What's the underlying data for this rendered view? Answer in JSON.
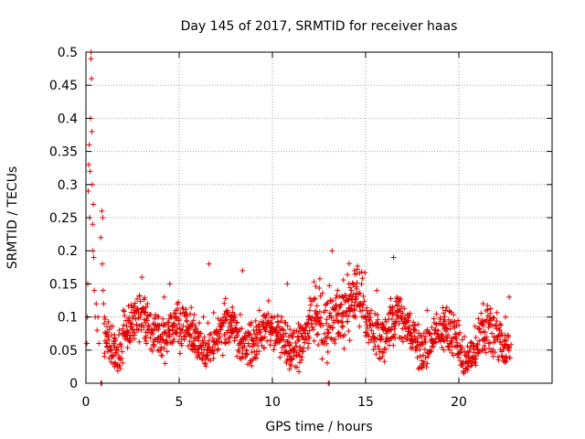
{
  "chart_data": {
    "type": "scatter",
    "title": "Day 145 of 2017, SRMTID for receiver haas",
    "xlabel": "GPS time / hours",
    "ylabel": "SRMTID / TECUs",
    "xlim": [
      0,
      25
    ],
    "ylim": [
      0,
      0.5
    ],
    "xticks": [
      0,
      5,
      10,
      15,
      20
    ],
    "yticks": [
      0,
      0.05,
      0.1,
      0.15,
      0.2,
      0.25,
      0.3,
      0.35,
      0.4,
      0.45,
      0.5
    ],
    "xtick_labels": [
      "0",
      "5",
      "10",
      "15",
      "20"
    ],
    "ytick_labels": [
      "0",
      "0.05",
      "0.1",
      "0.15",
      "0.2",
      "0.25",
      "0.3",
      "0.35",
      "0.4",
      "0.45",
      "0.5"
    ],
    "grid": true,
    "marker": "+",
    "color": "#e00000",
    "series": [
      {
        "name": "SRMTID",
        "points": [
          [
            0.05,
            0.06
          ],
          [
            0.08,
            0.1
          ],
          [
            0.1,
            0.15
          ],
          [
            0.12,
            0.29
          ],
          [
            0.15,
            0.33
          ],
          [
            0.18,
            0.36
          ],
          [
            0.2,
            0.25
          ],
          [
            0.22,
            0.32
          ],
          [
            0.25,
            0.4
          ],
          [
            0.27,
            0.49
          ],
          [
            0.28,
            0.5
          ],
          [
            0.3,
            0.46
          ],
          [
            0.32,
            0.38
          ],
          [
            0.34,
            0.3
          ],
          [
            0.36,
            0.24
          ],
          [
            0.38,
            0.2
          ],
          [
            0.4,
            0.27
          ],
          [
            0.42,
            0.19
          ],
          [
            0.45,
            0.14
          ],
          [
            0.5,
            0.1
          ],
          [
            0.55,
            0.12
          ],
          [
            0.6,
            0.08
          ],
          [
            0.65,
            0.1
          ],
          [
            0.7,
            0.06
          ],
          [
            0.8,
            0.22
          ],
          [
            0.85,
            0.26
          ],
          [
            0.88,
            0.18
          ],
          [
            0.9,
            0.25
          ],
          [
            0.92,
            0.14
          ],
          [
            0.95,
            0.12
          ],
          [
            0.98,
            0.09
          ],
          [
            1.0,
            0.1
          ],
          [
            0.8,
            0.0
          ],
          [
            0.85,
            0.0
          ],
          [
            13.0,
            0.0
          ],
          [
            13.05,
            0.0
          ],
          [
            1.2,
            0.07
          ],
          [
            1.5,
            0.06
          ],
          [
            1.8,
            0.08
          ],
          [
            2.1,
            0.07
          ],
          [
            2.4,
            0.09
          ],
          [
            2.7,
            0.11
          ],
          [
            3.0,
            0.16
          ],
          [
            3.3,
            0.12
          ],
          [
            3.6,
            0.09
          ],
          [
            3.9,
            0.1
          ],
          [
            4.2,
            0.13
          ],
          [
            4.5,
            0.15
          ],
          [
            4.8,
            0.1
          ],
          [
            5.1,
            0.06
          ],
          [
            5.4,
            0.08
          ],
          [
            5.7,
            0.09
          ],
          [
            6.0,
            0.07
          ],
          [
            6.3,
            0.1
          ],
          [
            6.6,
            0.18
          ],
          [
            6.9,
            0.05
          ],
          [
            7.2,
            0.07
          ],
          [
            7.5,
            0.06
          ],
          [
            7.8,
            0.08
          ],
          [
            8.1,
            0.07
          ],
          [
            8.4,
            0.17
          ],
          [
            8.7,
            0.06
          ],
          [
            9.0,
            0.08
          ],
          [
            9.3,
            0.11
          ],
          [
            9.6,
            0.07
          ],
          [
            9.9,
            0.09
          ],
          [
            10.2,
            0.08
          ],
          [
            10.5,
            0.1
          ],
          [
            10.8,
            0.15
          ],
          [
            11.1,
            0.07
          ],
          [
            11.4,
            0.09
          ],
          [
            11.7,
            0.08
          ],
          [
            12.0,
            0.11
          ],
          [
            12.3,
            0.1
          ],
          [
            12.6,
            0.09
          ],
          [
            12.9,
            0.12
          ],
          [
            13.2,
            0.2
          ],
          [
            13.5,
            0.14
          ],
          [
            13.8,
            0.13
          ],
          [
            14.1,
            0.15
          ],
          [
            14.4,
            0.17
          ],
          [
            14.7,
            0.12
          ],
          [
            15.0,
            0.1
          ],
          [
            15.3,
            0.11
          ],
          [
            15.6,
            0.14
          ],
          [
            15.9,
            0.09
          ],
          [
            16.2,
            0.08
          ],
          [
            16.5,
            0.19
          ],
          [
            16.8,
            0.09
          ],
          [
            17.1,
            0.07
          ],
          [
            17.4,
            0.06
          ],
          [
            17.7,
            0.08
          ],
          [
            18.0,
            0.07
          ],
          [
            18.3,
            0.11
          ],
          [
            18.6,
            0.06
          ],
          [
            18.9,
            0.07
          ],
          [
            19.2,
            0.05
          ],
          [
            19.5,
            0.06
          ],
          [
            19.8,
            0.07
          ],
          [
            20.1,
            0.05
          ],
          [
            20.4,
            0.04
          ],
          [
            20.7,
            0.03
          ],
          [
            21.0,
            0.05
          ],
          [
            21.3,
            0.12
          ],
          [
            21.6,
            0.06
          ],
          [
            21.9,
            0.07
          ],
          [
            22.2,
            0.08
          ],
          [
            22.5,
            0.1
          ],
          [
            22.7,
            0.13
          ]
        ],
        "dense_band": {
          "x_start": 1.0,
          "x_end": 22.8,
          "seed": 145
        }
      }
    ]
  }
}
